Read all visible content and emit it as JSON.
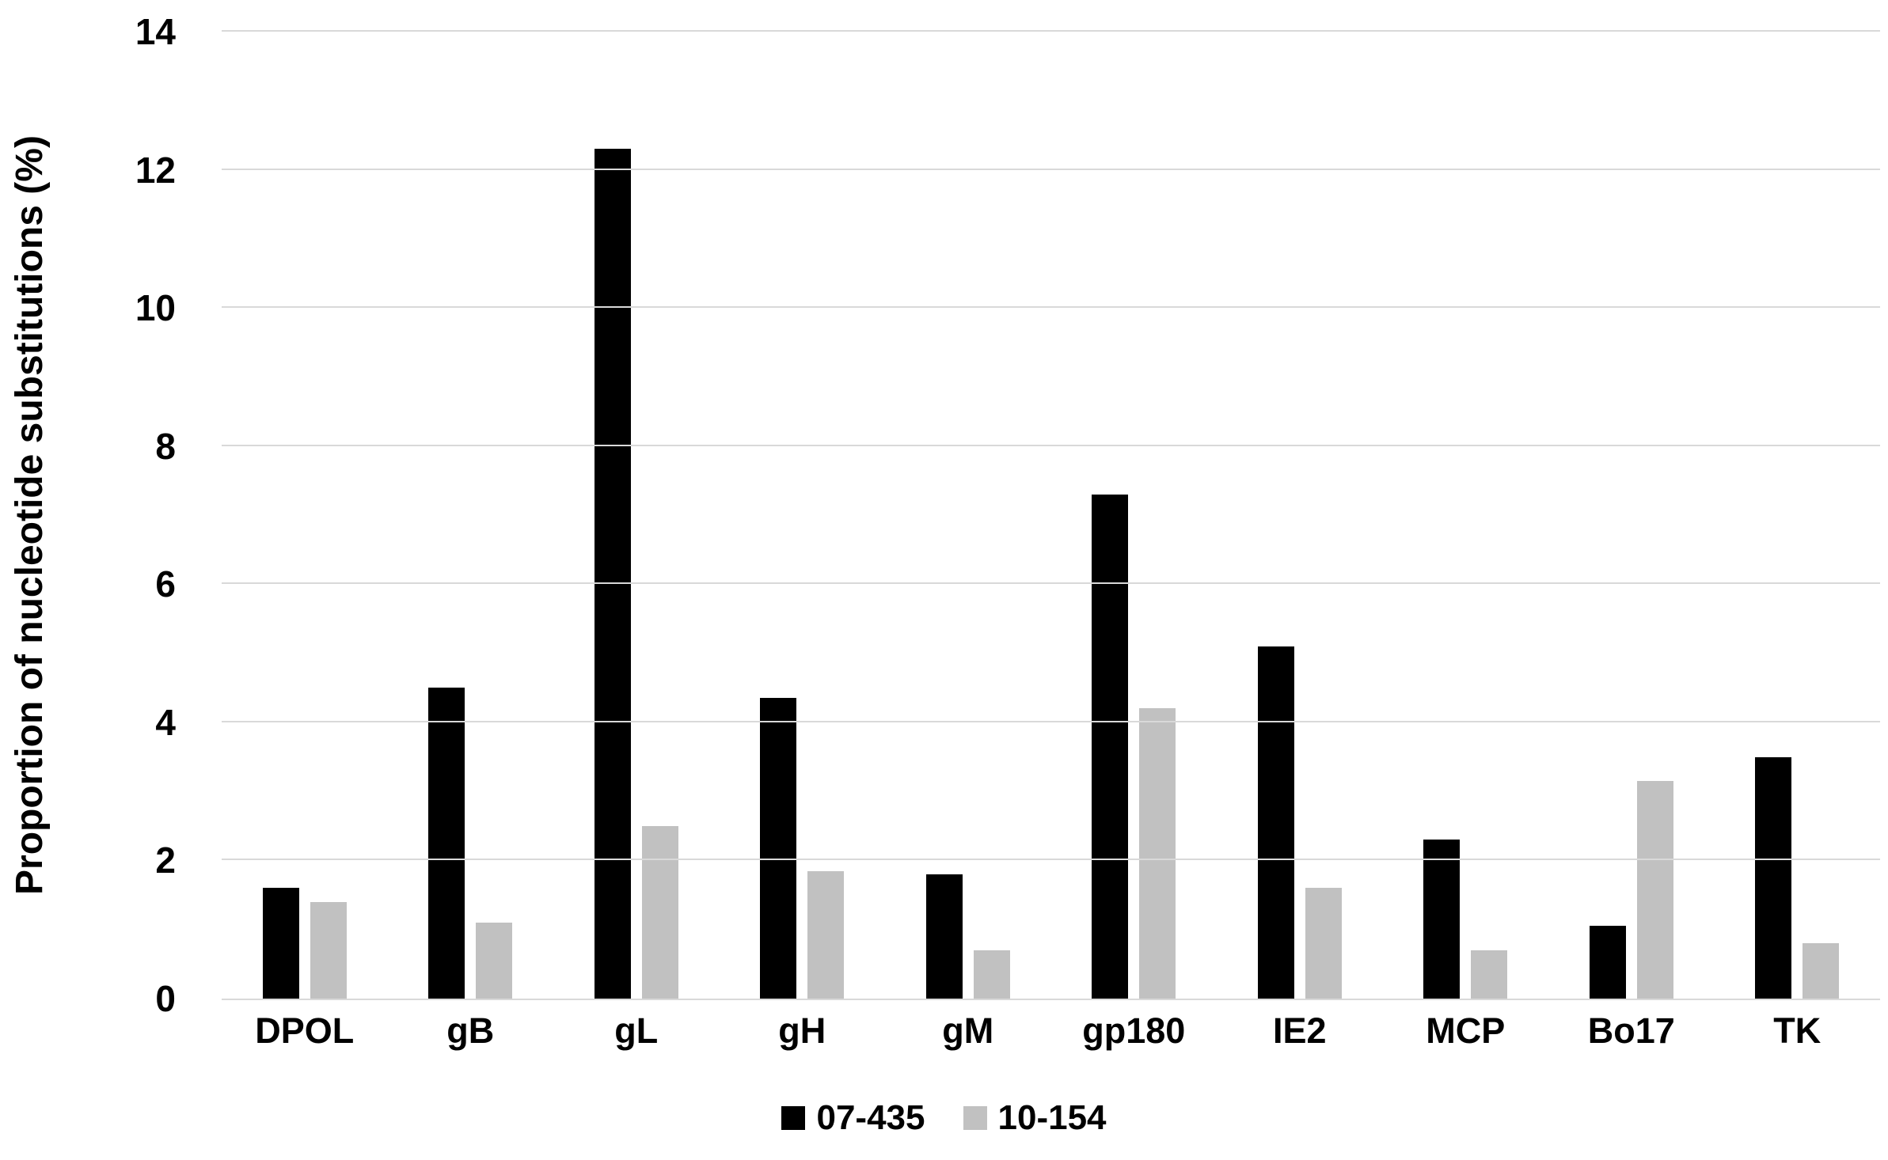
{
  "chart_data": {
    "type": "bar",
    "title": "",
    "xlabel": "",
    "ylabel": "Proportion of nucleotide substitutions (%)",
    "ylim": [
      0,
      14
    ],
    "yticks": [
      0,
      2,
      4,
      6,
      8,
      10,
      12,
      14
    ],
    "grid": true,
    "legend_position": "bottom-center",
    "categories": [
      "DPOL",
      "gB",
      "gL",
      "gH",
      "gM",
      "gp180",
      "IE2",
      "MCP",
      "Bo17",
      "TK"
    ],
    "series": [
      {
        "name": "07-435",
        "color": "#000000",
        "values": [
          1.6,
          4.5,
          12.3,
          4.35,
          1.8,
          7.3,
          5.1,
          2.3,
          1.05,
          3.5
        ]
      },
      {
        "name": "10-154",
        "color": "#c1c1c1",
        "values": [
          1.4,
          1.1,
          2.5,
          1.85,
          0.7,
          4.2,
          1.6,
          0.7,
          3.15,
          0.8
        ]
      }
    ]
  },
  "colors": {
    "gridline": "#d9d9d9",
    "background": "#ffffff",
    "text": "#000000"
  }
}
